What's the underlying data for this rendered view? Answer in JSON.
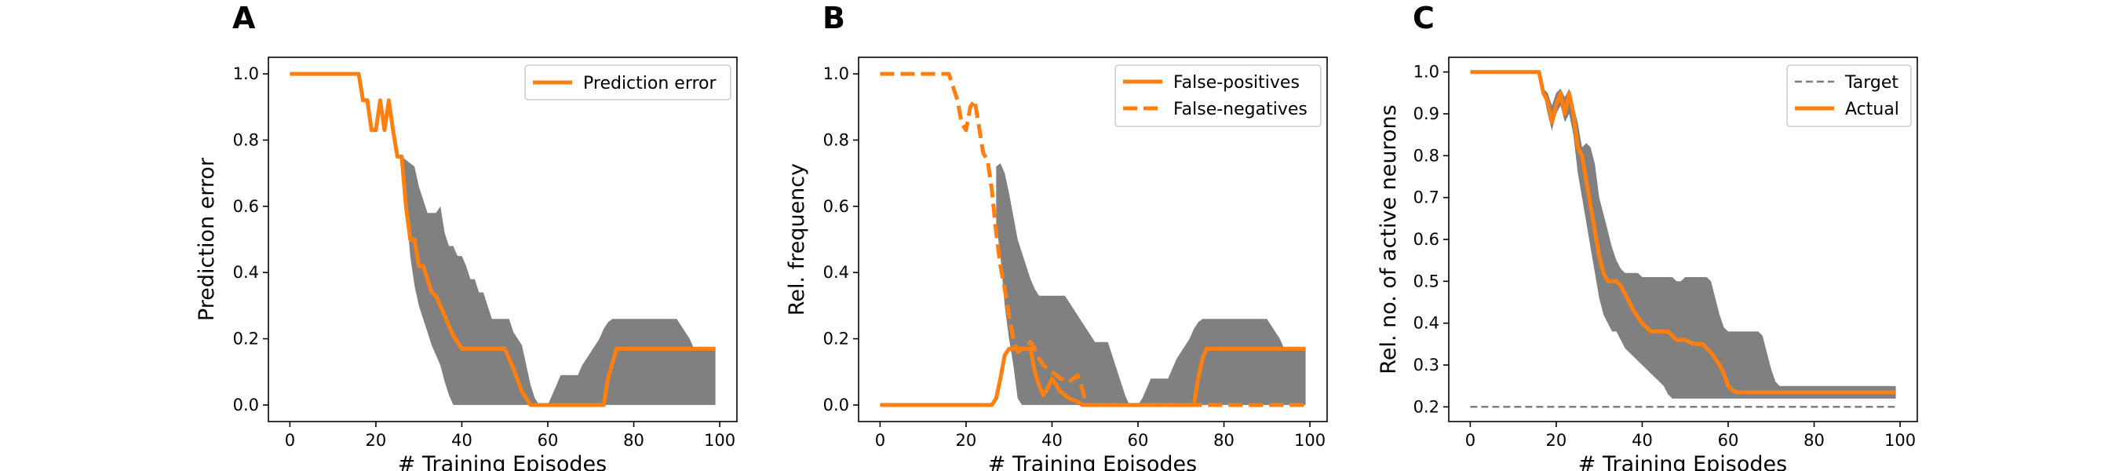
{
  "colors": {
    "series": "#ff7f0e",
    "band": "#808080",
    "target": "#7f7f7f",
    "axes": "#000000",
    "legend_border": "#cccccc"
  },
  "panels": [
    {
      "letter": "A",
      "xlabel": "# Training Episodes",
      "ylabel": "Prediction error",
      "legend": [
        "Prediction error"
      ]
    },
    {
      "letter": "B",
      "xlabel": "# Training Episodes",
      "ylabel": "Rel. frequency",
      "legend": [
        "False-positives",
        "False-negatives"
      ]
    },
    {
      "letter": "C",
      "xlabel": "# Training Episodes",
      "ylabel": "Rel. no. of active neurons",
      "legend": [
        "Target",
        "Actual"
      ]
    }
  ],
  "chart_data": [
    {
      "type": "line",
      "xlim": [
        -5,
        104
      ],
      "ylim": [
        -0.05,
        1.05
      ],
      "xticks": [
        0,
        20,
        40,
        60,
        80,
        100
      ],
      "yticks": [
        0.0,
        0.2,
        0.4,
        0.6,
        0.8,
        1.0
      ],
      "grid": false,
      "legend_position": "top-right",
      "series": [
        {
          "name": "Prediction error",
          "style": "solid",
          "x": [
            0,
            16,
            17,
            18,
            19,
            20,
            21,
            22,
            23,
            24,
            25,
            26,
            27,
            28,
            29,
            30,
            31,
            32,
            33,
            34,
            35,
            36,
            37,
            38,
            40,
            42,
            44,
            50,
            52,
            54,
            55,
            56,
            58,
            60,
            62,
            64,
            66,
            68,
            70,
            72,
            73,
            74,
            76,
            78,
            80,
            82,
            84,
            86,
            88,
            90,
            92,
            94,
            96,
            98,
            99
          ],
          "y": [
            1.0,
            1.0,
            0.92,
            0.92,
            0.83,
            0.83,
            0.92,
            0.83,
            0.92,
            0.83,
            0.75,
            0.75,
            0.6,
            0.5,
            0.5,
            0.42,
            0.42,
            0.38,
            0.34,
            0.33,
            0.3,
            0.27,
            0.24,
            0.21,
            0.17,
            0.17,
            0.17,
            0.17,
            0.11,
            0.04,
            0.02,
            0.0,
            0.0,
            0.0,
            0.0,
            0.0,
            0.0,
            0.0,
            0.0,
            0.0,
            0.0,
            0.08,
            0.17,
            0.17,
            0.17,
            0.17,
            0.17,
            0.17,
            0.17,
            0.17,
            0.17,
            0.17,
            0.17,
            0.17,
            0.17
          ]
        }
      ],
      "band": {
        "x": [
          26,
          27,
          28,
          29,
          30,
          31,
          32,
          33,
          34,
          35,
          36,
          37,
          38,
          39,
          40,
          41,
          42,
          43,
          44,
          45,
          46,
          47,
          48,
          49,
          50,
          51,
          52,
          53,
          54,
          55,
          56,
          57,
          58,
          59,
          60,
          61,
          62,
          63,
          64,
          65,
          66,
          67,
          68,
          69,
          70,
          71,
          72,
          73,
          74,
          75,
          76,
          77,
          78,
          79,
          80,
          81,
          82,
          83,
          84,
          85,
          86,
          87,
          88,
          89,
          90,
          91,
          92,
          93,
          94,
          95,
          96,
          97,
          98,
          99
        ],
        "lower": [
          0.72,
          0.6,
          0.45,
          0.36,
          0.3,
          0.26,
          0.22,
          0.18,
          0.15,
          0.12,
          0.07,
          0.03,
          0.0,
          0.0,
          0.0,
          0.0,
          0.0,
          0.0,
          0.0,
          0.0,
          0.0,
          0.0,
          0.0,
          0.0,
          0.0,
          0.0,
          0.0,
          0.0,
          0.0,
          0.0,
          0.0,
          0.0,
          0.0,
          0.0,
          0.0,
          0.0,
          0.0,
          0.0,
          0.0,
          0.0,
          0.0,
          0.0,
          0.0,
          0.0,
          0.0,
          0.0,
          0.0,
          0.0,
          0.0,
          0.0,
          0.0,
          0.0,
          0.0,
          0.0,
          0.0,
          0.0,
          0.0,
          0.0,
          0.0,
          0.0,
          0.0,
          0.0,
          0.0,
          0.0,
          0.0,
          0.0,
          0.0,
          0.0,
          0.0,
          0.0,
          0.0,
          0.0,
          0.0,
          0.0
        ],
        "upper": [
          0.75,
          0.74,
          0.73,
          0.72,
          0.66,
          0.62,
          0.58,
          0.58,
          0.58,
          0.6,
          0.52,
          0.48,
          0.48,
          0.45,
          0.45,
          0.42,
          0.38,
          0.38,
          0.34,
          0.34,
          0.3,
          0.26,
          0.26,
          0.26,
          0.26,
          0.26,
          0.22,
          0.2,
          0.18,
          0.12,
          0.06,
          0.02,
          0.0,
          0.0,
          0.0,
          0.03,
          0.06,
          0.09,
          0.09,
          0.09,
          0.09,
          0.09,
          0.12,
          0.14,
          0.16,
          0.18,
          0.2,
          0.23,
          0.25,
          0.26,
          0.26,
          0.26,
          0.26,
          0.26,
          0.26,
          0.26,
          0.26,
          0.26,
          0.26,
          0.26,
          0.26,
          0.26,
          0.26,
          0.26,
          0.26,
          0.24,
          0.22,
          0.2,
          0.17,
          0.17,
          0.17,
          0.17,
          0.17,
          0.17
        ]
      }
    },
    {
      "type": "line",
      "xlim": [
        -5,
        104
      ],
      "ylim": [
        -0.05,
        1.05
      ],
      "xticks": [
        0,
        20,
        40,
        60,
        80,
        100
      ],
      "yticks": [
        0.0,
        0.2,
        0.4,
        0.6,
        0.8,
        1.0
      ],
      "grid": false,
      "legend_position": "top-right",
      "series": [
        {
          "name": "False-positives",
          "style": "solid",
          "x": [
            0,
            26,
            27,
            28,
            29,
            30,
            31,
            32,
            33,
            34,
            35,
            36,
            37,
            38,
            39,
            40,
            42,
            44,
            46,
            47,
            48,
            50,
            52,
            54,
            56,
            58,
            60,
            62,
            64,
            66,
            68,
            70,
            72,
            73,
            74,
            75,
            76,
            78,
            80,
            82,
            84,
            86,
            88,
            90,
            92,
            94,
            96,
            98,
            99
          ],
          "y": [
            0.0,
            0.0,
            0.02,
            0.08,
            0.15,
            0.17,
            0.17,
            0.17,
            0.17,
            0.17,
            0.17,
            0.1,
            0.06,
            0.03,
            0.05,
            0.08,
            0.04,
            0.02,
            0.01,
            0.0,
            0.0,
            0.0,
            0.0,
            0.0,
            0.0,
            0.0,
            0.0,
            0.0,
            0.0,
            0.0,
            0.0,
            0.0,
            0.0,
            0.0,
            0.08,
            0.14,
            0.17,
            0.17,
            0.17,
            0.17,
            0.17,
            0.17,
            0.17,
            0.17,
            0.17,
            0.17,
            0.17,
            0.17,
            0.17
          ]
        },
        {
          "name": "False-negatives",
          "style": "dashed",
          "x": [
            0,
            16,
            17,
            18,
            19,
            20,
            21,
            22,
            23,
            24,
            25,
            26,
            27,
            28,
            29,
            30,
            31,
            32,
            33,
            34,
            35,
            36,
            37,
            38,
            39,
            40,
            42,
            44,
            46,
            47,
            48,
            50,
            60,
            70,
            80,
            90,
            99
          ],
          "y": [
            1.0,
            1.0,
            0.96,
            0.92,
            0.85,
            0.83,
            0.9,
            0.92,
            0.84,
            0.76,
            0.74,
            0.65,
            0.52,
            0.42,
            0.35,
            0.27,
            0.2,
            0.16,
            0.17,
            0.18,
            0.19,
            0.17,
            0.14,
            0.12,
            0.11,
            0.1,
            0.08,
            0.07,
            0.09,
            0.05,
            0.0,
            0.0,
            0.0,
            0.0,
            0.0,
            0.0,
            0.0
          ]
        }
      ],
      "band": {
        "x": [
          27,
          28,
          29,
          30,
          31,
          32,
          33,
          34,
          35,
          36,
          37,
          38,
          39,
          40,
          41,
          42,
          43,
          44,
          45,
          46,
          47,
          48,
          49,
          50,
          51,
          52,
          53,
          54,
          55,
          56,
          57,
          58,
          59,
          60,
          61,
          62,
          63,
          64,
          65,
          66,
          67,
          68,
          69,
          70,
          71,
          72,
          73,
          74,
          75,
          76,
          77,
          78,
          79,
          80,
          81,
          82,
          83,
          84,
          85,
          86,
          87,
          88,
          89,
          90,
          91,
          92,
          93,
          94,
          95,
          96,
          97,
          98,
          99
        ],
        "lower": [
          0.55,
          0.45,
          0.3,
          0.2,
          0.12,
          0.02,
          0.0,
          0.0,
          0.0,
          0.0,
          0.0,
          0.0,
          0.0,
          0.0,
          0.0,
          0.0,
          0.0,
          0.0,
          0.0,
          0.0,
          0.0,
          0.0,
          0.0,
          0.0,
          0.0,
          0.0,
          0.0,
          0.0,
          0.0,
          0.0,
          0.0,
          0.0,
          0.0,
          0.0,
          0.0,
          0.0,
          0.0,
          0.0,
          0.0,
          0.0,
          0.0,
          0.0,
          0.0,
          0.0,
          0.0,
          0.0,
          0.0,
          0.0,
          0.0,
          0.0,
          0.0,
          0.0,
          0.0,
          0.0,
          0.0,
          0.0,
          0.0,
          0.0,
          0.0,
          0.0,
          0.0,
          0.0,
          0.0,
          0.0,
          0.0,
          0.0,
          0.0,
          0.0,
          0.0,
          0.0,
          0.0,
          0.0,
          0.0
        ],
        "upper": [
          0.72,
          0.73,
          0.7,
          0.64,
          0.57,
          0.5,
          0.46,
          0.42,
          0.38,
          0.35,
          0.33,
          0.33,
          0.33,
          0.33,
          0.33,
          0.33,
          0.33,
          0.31,
          0.29,
          0.27,
          0.25,
          0.23,
          0.21,
          0.19,
          0.19,
          0.19,
          0.19,
          0.15,
          0.11,
          0.07,
          0.03,
          0.0,
          0.0,
          0.0,
          0.02,
          0.05,
          0.08,
          0.08,
          0.08,
          0.08,
          0.08,
          0.11,
          0.14,
          0.16,
          0.18,
          0.2,
          0.23,
          0.25,
          0.26,
          0.26,
          0.26,
          0.26,
          0.26,
          0.26,
          0.26,
          0.26,
          0.26,
          0.26,
          0.26,
          0.26,
          0.26,
          0.26,
          0.26,
          0.26,
          0.24,
          0.22,
          0.2,
          0.17,
          0.17,
          0.17,
          0.17,
          0.17,
          0.17
        ]
      }
    },
    {
      "type": "line",
      "xlim": [
        -5,
        104
      ],
      "ylim": [
        0.165,
        1.035
      ],
      "xticks": [
        0,
        20,
        40,
        60,
        80,
        100
      ],
      "yticks": [
        0.2,
        0.3,
        0.4,
        0.5,
        0.6,
        0.7,
        0.8,
        0.9,
        1.0
      ],
      "grid": false,
      "legend_position": "top-right",
      "series": [
        {
          "name": "Target",
          "style": "dashed-thin",
          "x": [
            0,
            99
          ],
          "y": [
            0.2,
            0.2
          ]
        },
        {
          "name": "Actual",
          "style": "solid",
          "x": [
            0,
            16,
            17,
            18,
            19,
            20,
            21,
            22,
            23,
            24,
            25,
            26,
            27,
            28,
            29,
            30,
            31,
            32,
            33,
            34,
            35,
            36,
            38,
            40,
            42,
            44,
            46,
            48,
            50,
            52,
            54,
            56,
            58,
            59,
            60,
            61,
            62,
            64,
            70,
            80,
            90,
            99
          ],
          "y": [
            1.0,
            1.0,
            0.95,
            0.93,
            0.88,
            0.92,
            0.95,
            0.9,
            0.95,
            0.9,
            0.82,
            0.8,
            0.74,
            0.68,
            0.62,
            0.56,
            0.52,
            0.5,
            0.5,
            0.5,
            0.49,
            0.47,
            0.43,
            0.4,
            0.38,
            0.38,
            0.38,
            0.36,
            0.36,
            0.35,
            0.35,
            0.33,
            0.3,
            0.28,
            0.25,
            0.24,
            0.235,
            0.235,
            0.235,
            0.235,
            0.235,
            0.235
          ]
        }
      ],
      "band": {
        "x": [
          16,
          17,
          18,
          19,
          20,
          21,
          22,
          23,
          24,
          25,
          26,
          27,
          28,
          29,
          30,
          31,
          32,
          33,
          34,
          35,
          36,
          37,
          38,
          39,
          40,
          41,
          42,
          43,
          44,
          45,
          46,
          47,
          48,
          49,
          50,
          51,
          52,
          53,
          54,
          55,
          56,
          57,
          58,
          59,
          60,
          61,
          62,
          63,
          64,
          65,
          66,
          67,
          68,
          69,
          70,
          71,
          72,
          73,
          74,
          75,
          76,
          77,
          78,
          79,
          80,
          81,
          82,
          83,
          84,
          85,
          86,
          87,
          88,
          89,
          90,
          91,
          92,
          93,
          94,
          95,
          96,
          97,
          98,
          99
        ],
        "lower": [
          1.0,
          0.95,
          0.9,
          0.86,
          0.9,
          0.92,
          0.88,
          0.9,
          0.85,
          0.76,
          0.7,
          0.64,
          0.58,
          0.52,
          0.46,
          0.42,
          0.4,
          0.38,
          0.38,
          0.36,
          0.34,
          0.33,
          0.32,
          0.31,
          0.3,
          0.29,
          0.28,
          0.27,
          0.26,
          0.25,
          0.23,
          0.22,
          0.22,
          0.22,
          0.22,
          0.22,
          0.22,
          0.22,
          0.22,
          0.22,
          0.22,
          0.22,
          0.22,
          0.22,
          0.22,
          0.22,
          0.22,
          0.22,
          0.22,
          0.22,
          0.22,
          0.22,
          0.22,
          0.22,
          0.22,
          0.22,
          0.22,
          0.22,
          0.22,
          0.22,
          0.22,
          0.22,
          0.22,
          0.22,
          0.22,
          0.22,
          0.22,
          0.22,
          0.22,
          0.22,
          0.22,
          0.22,
          0.22,
          0.22,
          0.22,
          0.22,
          0.22,
          0.22,
          0.22,
          0.22,
          0.22,
          0.22,
          0.22,
          0.22
        ],
        "upper": [
          1.0,
          0.96,
          0.95,
          0.92,
          0.95,
          0.96,
          0.94,
          0.96,
          0.92,
          0.88,
          0.82,
          0.83,
          0.82,
          0.78,
          0.7,
          0.66,
          0.62,
          0.58,
          0.55,
          0.53,
          0.52,
          0.52,
          0.52,
          0.52,
          0.51,
          0.51,
          0.51,
          0.51,
          0.51,
          0.51,
          0.51,
          0.51,
          0.5,
          0.5,
          0.51,
          0.51,
          0.51,
          0.51,
          0.51,
          0.51,
          0.5,
          0.46,
          0.42,
          0.39,
          0.38,
          0.38,
          0.38,
          0.38,
          0.38,
          0.38,
          0.38,
          0.38,
          0.37,
          0.33,
          0.29,
          0.26,
          0.25,
          0.25,
          0.25,
          0.25,
          0.25,
          0.25,
          0.25,
          0.25,
          0.25,
          0.25,
          0.25,
          0.25,
          0.25,
          0.25,
          0.25,
          0.25,
          0.25,
          0.25,
          0.25,
          0.25,
          0.25,
          0.25,
          0.25,
          0.25,
          0.25,
          0.25,
          0.25,
          0.25
        ]
      }
    }
  ]
}
